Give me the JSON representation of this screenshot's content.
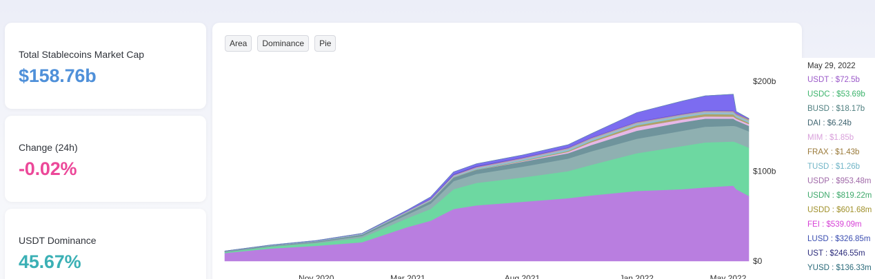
{
  "colors": {
    "USDT": "#b97ee0",
    "USDC": "#6dd8a1",
    "BUSD": "#8fb0b1",
    "DAI": "#6f949c",
    "MIM": "#e6b8e7",
    "FRAX": "#b0a06a",
    "TUSD": "#7fc8d6",
    "USDP": "#c0a3c8",
    "USDN": "#88cba1",
    "USDD": "#b3a55e",
    "FEI": "#cc5fcf",
    "LUSD": "#4a5fbf",
    "UST": "#7c6cf0",
    "YUSD": "#5a8ea0"
  },
  "stats": [
    {
      "label": "Total Stablecoins Market Cap",
      "value": "$158.76b",
      "color": "#4f90d9"
    },
    {
      "label": "Change (24h)",
      "value": "-0.02%",
      "color": "#ec4899"
    },
    {
      "label": "USDT Dominance",
      "value": "45.67%",
      "color": "#3bb0b5"
    }
  ],
  "tabs": [
    "Area",
    "Dominance",
    "Pie"
  ],
  "tooltip": {
    "date": "May 29, 2022",
    "entries": [
      {
        "text": "USDT : $72.5b",
        "color": "#9b59c9"
      },
      {
        "text": "USDC : $53.69b",
        "color": "#3cb36b"
      },
      {
        "text": "BUSD : $18.17b",
        "color": "#4f7f80"
      },
      {
        "text": "DAI : $6.24b",
        "color": "#3f6470"
      },
      {
        "text": "MIM : $1.85b",
        "color": "#d9a0db"
      },
      {
        "text": "FRAX : $1.43b",
        "color": "#9a7a3a"
      },
      {
        "text": "TUSD : $1.26b",
        "color": "#6fb4c6"
      },
      {
        "text": "USDP : $953.48m",
        "color": "#a06aa8"
      },
      {
        "text": "USDN : $819.22m",
        "color": "#3ca86a"
      },
      {
        "text": "USDD : $601.68m",
        "color": "#a0902a"
      },
      {
        "text": "FEI : $539.09m",
        "color": "#d63fd6"
      },
      {
        "text": "LUSD : $326.85m",
        "color": "#3a4db0"
      },
      {
        "text": "UST : $246.55m",
        "color": "#2a2a7a"
      },
      {
        "text": "YUSD : $136.33m",
        "color": "#2a6a7a"
      }
    ]
  },
  "chart_data": {
    "type": "area",
    "stacked": true,
    "x": [
      "2020-07",
      "2020-09",
      "2020-11",
      "2021-01",
      "2021-03",
      "2021-04",
      "2021-05",
      "2021-06",
      "2021-08",
      "2021-10",
      "2021-11",
      "2022-01",
      "2022-03",
      "2022-04",
      "2022-05-08",
      "2022-05-12",
      "2022-05-29"
    ],
    "x_ticks": [
      "Nov 2020",
      "Mar 2021",
      "Aug 2021",
      "Jan 2022",
      "May 2022"
    ],
    "y_ticks": [
      "$0",
      "$100b",
      "$200b"
    ],
    "ylim": [
      0,
      200
    ],
    "y_unit": "billion USD",
    "grid": false,
    "series": [
      {
        "name": "USDT",
        "values": [
          9,
          14,
          17,
          21,
          38,
          45,
          58,
          62,
          66,
          70,
          73,
          78,
          80,
          82,
          84,
          80,
          72.5
        ]
      },
      {
        "name": "USDC",
        "values": [
          1,
          2,
          3,
          5,
          10,
          13,
          22,
          25,
          27,
          30,
          34,
          42,
          48,
          50,
          49,
          52,
          53.69
        ]
      },
      {
        "name": "BUSD",
        "values": [
          0.3,
          0.5,
          1,
          2,
          4,
          6,
          9,
          10,
          12,
          14,
          15,
          16,
          17,
          17.5,
          17.5,
          18,
          18.17
        ]
      },
      {
        "name": "DAI",
        "values": [
          0.5,
          0.8,
          1,
          1.5,
          2.5,
          3,
          4,
          4.5,
          5.5,
          6,
          7,
          9,
          9.5,
          9,
          8,
          6.5,
          6.24
        ]
      },
      {
        "name": "MIM",
        "values": [
          0,
          0,
          0,
          0,
          0,
          0,
          0,
          0,
          0.5,
          1.5,
          3,
          4,
          3,
          2.5,
          2.2,
          2,
          1.85
        ]
      },
      {
        "name": "FRAX",
        "values": [
          0,
          0,
          0,
          0.1,
          0.2,
          0.3,
          0.4,
          0.5,
          0.7,
          1,
          1.5,
          2,
          2.5,
          2.7,
          2.6,
          1.6,
          1.43
        ]
      },
      {
        "name": "TUSD",
        "values": [
          0.2,
          0.3,
          0.4,
          0.5,
          0.5,
          0.6,
          0.8,
          1,
          1.2,
          1.3,
          1.3,
          1.3,
          1.3,
          1.2,
          1.2,
          1.2,
          1.26
        ]
      },
      {
        "name": "USDP",
        "values": [
          0.2,
          0.2,
          0.3,
          0.4,
          0.5,
          0.6,
          0.8,
          0.9,
          0.9,
          1,
          1,
          1,
          1,
          1,
          1,
          1,
          0.95
        ]
      },
      {
        "name": "USDN",
        "values": [
          0,
          0,
          0,
          0.1,
          0.2,
          0.3,
          0.4,
          0.5,
          0.5,
          0.6,
          0.7,
          0.8,
          0.8,
          0.9,
          0.9,
          0.8,
          0.82
        ]
      },
      {
        "name": "USDD",
        "values": [
          0,
          0,
          0,
          0,
          0,
          0,
          0,
          0,
          0,
          0,
          0,
          0,
          0,
          0,
          0.2,
          0.4,
          0.6
        ]
      },
      {
        "name": "FEI",
        "values": [
          0,
          0,
          0,
          0,
          0.1,
          0.3,
          0.5,
          0.6,
          0.6,
          0.6,
          0.6,
          0.6,
          0.6,
          0.6,
          0.6,
          0.6,
          0.54
        ]
      },
      {
        "name": "LUSD",
        "values": [
          0,
          0,
          0,
          0,
          0.2,
          0.4,
          0.8,
          0.8,
          0.5,
          0.4,
          0.4,
          0.4,
          0.4,
          0.4,
          0.4,
          0.3,
          0.33
        ]
      },
      {
        "name": "UST",
        "values": [
          0.1,
          0.1,
          0.2,
          0.3,
          1,
          2,
          2.5,
          2.5,
          2.5,
          3,
          4,
          10,
          14,
          16,
          18,
          2,
          0.25
        ]
      },
      {
        "name": "YUSD",
        "values": [
          0,
          0,
          0,
          0,
          0,
          0,
          0,
          0,
          0,
          0,
          0,
          0,
          0,
          0.1,
          0.1,
          0.1,
          0.14
        ]
      }
    ]
  }
}
